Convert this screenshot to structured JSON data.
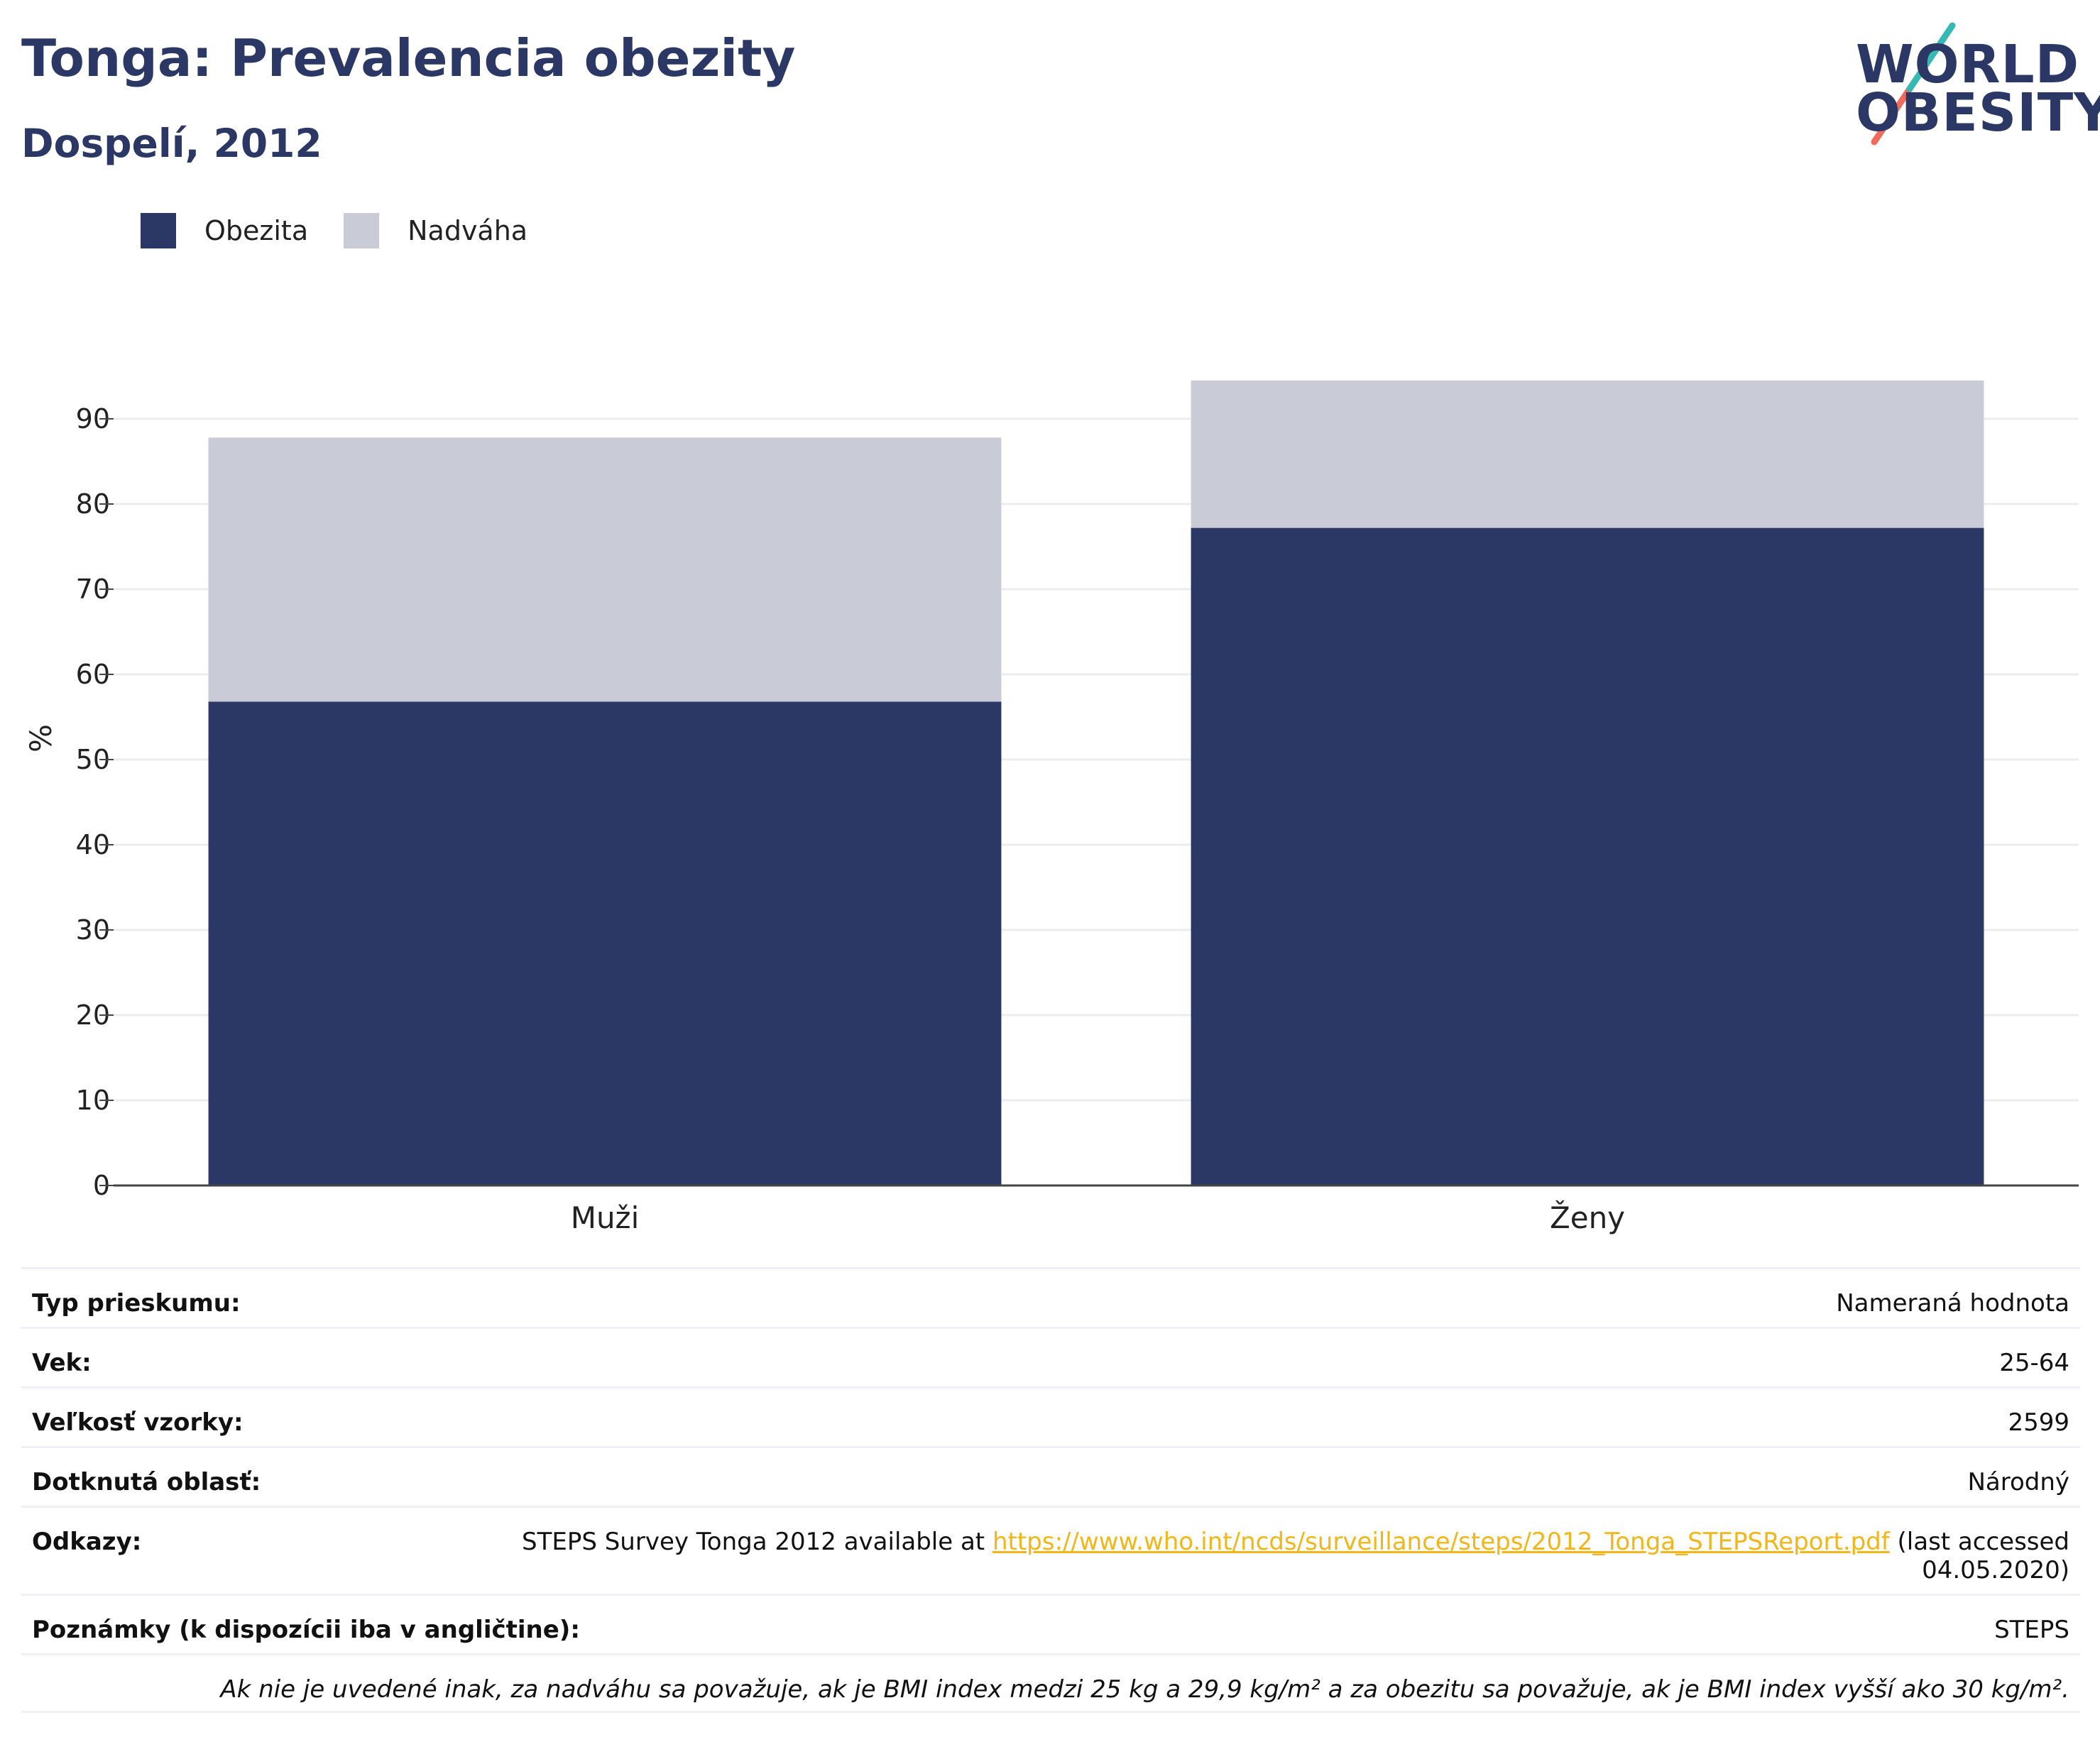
{
  "header": {
    "title": "Tonga: Prevalencia obezity",
    "subtitle": "Dospelí, 2012"
  },
  "logo": {
    "line1": "WORLD",
    "line2": "OBESITY"
  },
  "colors": {
    "obesity": "#2b3764",
    "overweight": "#c9ccd7",
    "link": "#f2b619",
    "grid": "#ececf2"
  },
  "legend": [
    {
      "label": "Obezita",
      "color": "#2b3764"
    },
    {
      "label": "Nadváha",
      "color": "#c9ccd7"
    }
  ],
  "chart_data": {
    "type": "bar",
    "stacked": true,
    "categories": [
      "Muži",
      "Ženy"
    ],
    "series": [
      {
        "name": "Obezita",
        "values": [
          56.8,
          77.2
        ]
      },
      {
        "name": "Nadváha",
        "values": [
          31.0,
          17.3
        ]
      }
    ],
    "ylabel": "%",
    "ylim": [
      0,
      95
    ],
    "yticks": [
      0,
      10,
      20,
      30,
      40,
      50,
      60,
      70,
      80,
      90
    ],
    "grid": true,
    "legend_position": "top-left"
  },
  "meta": {
    "survey_type": {
      "key": "Typ prieskumu:",
      "value": "Nameraná hodnota"
    },
    "age": {
      "key": "Vek:",
      "value": "25-64"
    },
    "sample": {
      "key": "Veľkosť vzorky:",
      "value": "2599"
    },
    "area": {
      "key": "Dotknutá oblasť:",
      "value": "Národný"
    },
    "refs": {
      "key": "Odkazy:",
      "prefix": "STEPS Survey Tonga 2012 available at ",
      "link": "https://www.who.int/ncds/surveillance/steps/2012_Tonga_STEPSReport.pdf",
      "suffix": " (last accessed",
      "line2": "04.05.2020)"
    },
    "notes": {
      "key": "Poznámky (k dispozícii iba v angličtine):",
      "value": "STEPS"
    },
    "footnote": "Ak nie je uvedené inak, za nadváhu sa považuje, ak je BMI index medzi 25 kg a 29,9 kg/m² a za obezitu sa považuje, ak je BMI index vyšší ako 30 kg/m²."
  }
}
